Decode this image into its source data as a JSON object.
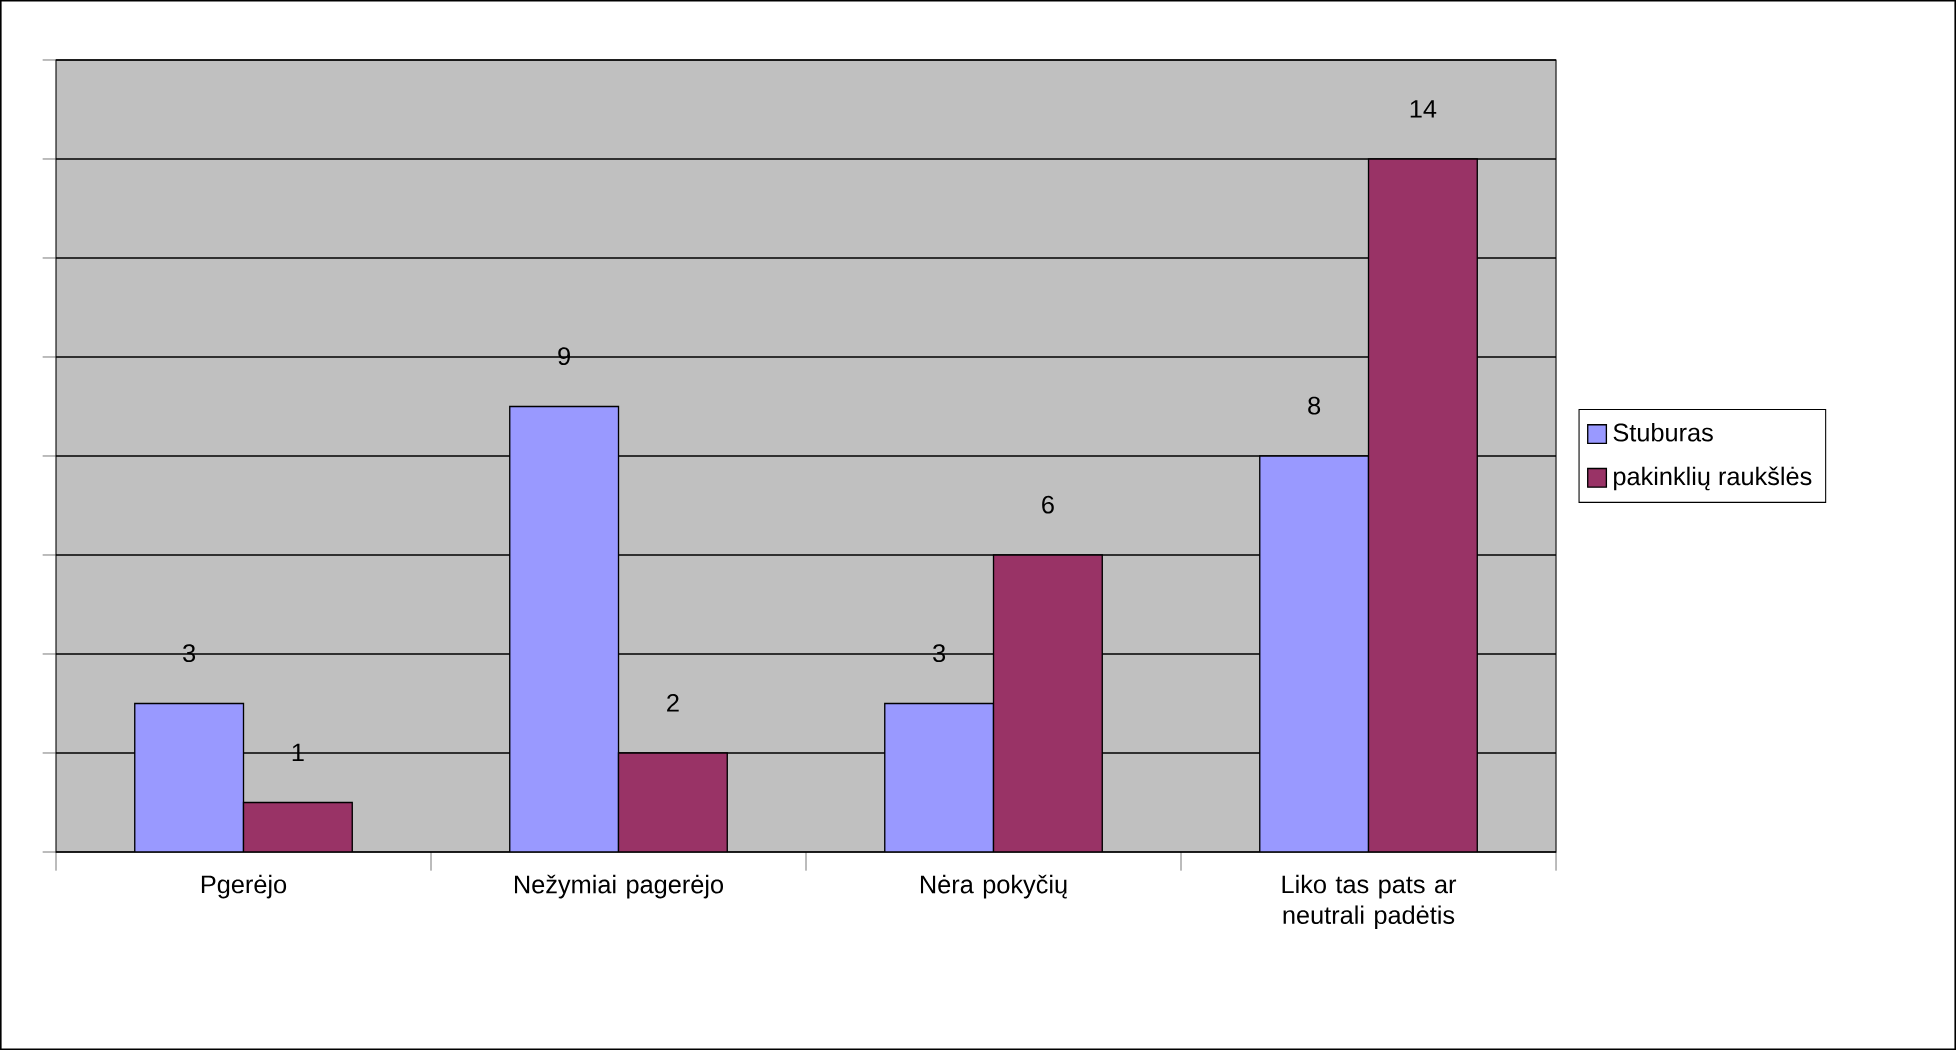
{
  "chart_data": {
    "type": "bar",
    "categories": [
      "Pgerėjo",
      "Nežymiai pagerėjo",
      "Nėra pokyčių",
      "Liko tas pats ar neutrali padėtis"
    ],
    "series": [
      {
        "name": "Stuburas",
        "color": "#9999ff",
        "values": [
          3,
          9,
          3,
          8
        ]
      },
      {
        "name": "pakinklių raukšlės",
        "color": "#993366",
        "values": [
          1,
          2,
          6,
          14
        ]
      }
    ],
    "ylim": [
      0,
      16
    ],
    "yticks": [
      {
        "value": 0,
        "label": null
      },
      {
        "value": 2,
        "label": null
      },
      {
        "value": 4,
        "label": null
      },
      {
        "value": 6,
        "label": null
      },
      {
        "value": 8,
        "label": null
      },
      {
        "value": 10,
        "label": null
      },
      {
        "value": 12,
        "label": null
      },
      {
        "value": 14,
        "label": null
      },
      {
        "value": 16,
        "label": null
      }
    ],
    "tick_labels": "x",
    "grid": "y",
    "legend": "right",
    "data_labels": true
  }
}
